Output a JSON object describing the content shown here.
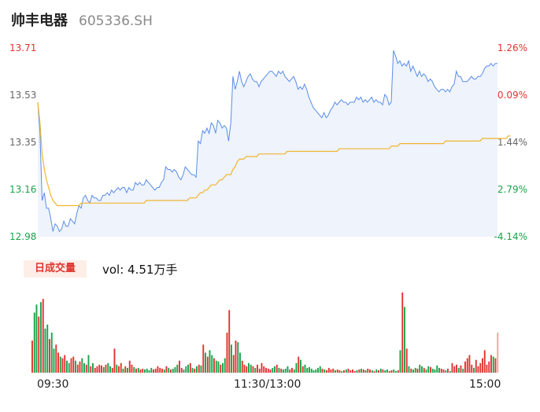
{
  "header": {
    "name": "帅丰电器",
    "code": "605336.SH"
  },
  "colors": {
    "up": "#e0342f",
    "down": "#1aa34a",
    "neutral": "#666666",
    "price_line": "#5b8ee6",
    "avg_line": "#f2b430",
    "fill": "#eef3fc"
  },
  "chart_data": [
    {
      "type": "line",
      "title": "",
      "x_ticks": [
        "09:30",
        "11:30/13:00",
        "15:00"
      ],
      "y_left_ticks": [
        "13.71",
        "13.53",
        "13.35",
        "13.16",
        "12.98"
      ],
      "y_right_ticks": [
        "1.26%",
        "-0.09%",
        "-1.44%",
        "-2.79%",
        "-4.14%"
      ],
      "ylim": [
        12.98,
        13.71
      ],
      "prev_close": 13.54,
      "series": [
        {
          "role": "price",
          "values": [
            13.5,
            13.38,
            13.12,
            13.15,
            13.09,
            13.09,
            13.05,
            13.0,
            13.03,
            13.02,
            13.0,
            13.01,
            13.04,
            13.02,
            13.02,
            13.05,
            13.04,
            13.03,
            13.07,
            13.1,
            13.09,
            13.13,
            13.14,
            13.12,
            13.11,
            13.14,
            13.13,
            13.13,
            13.12,
            13.12,
            13.14,
            13.14,
            13.15,
            13.14,
            13.16,
            13.15,
            13.16,
            13.17,
            13.16,
            13.17,
            13.17,
            13.15,
            13.17,
            13.16,
            13.16,
            13.19,
            13.18,
            13.19,
            13.18,
            13.18,
            13.2,
            13.19,
            13.18,
            13.17,
            13.16,
            13.17,
            13.17,
            13.19,
            13.2,
            13.25,
            13.24,
            13.24,
            13.23,
            13.24,
            13.23,
            13.21,
            13.2,
            13.22,
            13.25,
            13.24,
            13.23,
            13.22,
            13.22,
            13.21,
            13.35,
            13.34,
            13.39,
            13.38,
            13.4,
            13.38,
            13.42,
            13.41,
            13.38,
            13.43,
            13.42,
            13.4,
            13.41,
            13.4,
            13.35,
            13.42,
            13.6,
            13.55,
            13.58,
            13.62,
            13.58,
            13.56,
            13.58,
            13.6,
            13.61,
            13.59,
            13.58,
            13.58,
            13.56,
            13.58,
            13.59,
            13.6,
            13.61,
            13.62,
            13.62,
            13.61,
            13.6,
            13.62,
            13.61,
            13.62,
            13.6,
            13.59,
            13.58,
            13.59,
            13.6,
            13.58,
            13.55,
            13.56,
            13.55,
            13.57,
            13.55,
            13.52,
            13.5,
            13.48,
            13.47,
            13.46,
            13.45,
            13.44,
            13.46,
            13.44,
            13.45,
            13.47,
            13.48,
            13.5,
            13.49,
            13.5,
            13.51,
            13.5,
            13.5,
            13.49,
            13.5,
            13.5,
            13.5,
            13.52,
            13.51,
            13.52,
            13.5,
            13.51,
            13.5,
            13.51,
            13.52,
            13.5,
            13.51,
            13.5,
            13.5,
            13.49,
            13.53,
            13.52,
            13.49,
            13.5,
            13.7,
            13.68,
            13.65,
            13.66,
            13.64,
            13.65,
            13.64,
            13.66,
            13.62,
            13.64,
            13.62,
            13.6,
            13.62,
            13.6,
            13.61,
            13.6,
            13.58,
            13.59,
            13.58,
            13.56,
            13.55,
            13.54,
            13.55,
            13.55,
            13.54,
            13.55,
            13.54,
            13.56,
            13.57,
            13.62,
            13.6,
            13.6,
            13.58,
            13.58,
            13.58,
            13.59,
            13.6,
            13.59,
            13.59,
            13.6,
            13.6,
            13.61,
            13.63,
            13.64,
            13.64,
            13.65,
            13.64,
            13.65,
            13.65
          ]
        },
        {
          "role": "average",
          "values": [
            13.5,
            13.42,
            13.3,
            13.24,
            13.2,
            13.17,
            13.14,
            13.12,
            13.11,
            13.1,
            13.1,
            13.1,
            13.1,
            13.1,
            13.1,
            13.1,
            13.1,
            13.1,
            13.1,
            13.1,
            13.11,
            13.11,
            13.11,
            13.11,
            13.11,
            13.11,
            13.11,
            13.11,
            13.11,
            13.11,
            13.11,
            13.11,
            13.11,
            13.11,
            13.11,
            13.11,
            13.11,
            13.11,
            13.11,
            13.11,
            13.11,
            13.11,
            13.11,
            13.11,
            13.11,
            13.11,
            13.11,
            13.11,
            13.11,
            13.11,
            13.12,
            13.12,
            13.12,
            13.12,
            13.12,
            13.12,
            13.12,
            13.12,
            13.12,
            13.12,
            13.12,
            13.12,
            13.12,
            13.12,
            13.12,
            13.12,
            13.12,
            13.12,
            13.12,
            13.12,
            13.13,
            13.13,
            13.13,
            13.13,
            13.14,
            13.15,
            13.15,
            13.16,
            13.16,
            13.17,
            13.18,
            13.18,
            13.18,
            13.19,
            13.2,
            13.2,
            13.21,
            13.22,
            13.22,
            13.22,
            13.24,
            13.25,
            13.27,
            13.28,
            13.28,
            13.28,
            13.29,
            13.29,
            13.29,
            13.29,
            13.29,
            13.29,
            13.3,
            13.3,
            13.3,
            13.3,
            13.3,
            13.3,
            13.3,
            13.3,
            13.3,
            13.3,
            13.3,
            13.3,
            13.3,
            13.31,
            13.31,
            13.31,
            13.31,
            13.31,
            13.31,
            13.31,
            13.31,
            13.31,
            13.31,
            13.31,
            13.31,
            13.31,
            13.31,
            13.31,
            13.31,
            13.31,
            13.31,
            13.31,
            13.31,
            13.31,
            13.31,
            13.31,
            13.31,
            13.32,
            13.32,
            13.32,
            13.32,
            13.32,
            13.32,
            13.32,
            13.32,
            13.32,
            13.32,
            13.32,
            13.32,
            13.32,
            13.32,
            13.32,
            13.32,
            13.32,
            13.32,
            13.32,
            13.32,
            13.32,
            13.32,
            13.32,
            13.32,
            13.33,
            13.33,
            13.33,
            13.33,
            13.34,
            13.34,
            13.34,
            13.34,
            13.34,
            13.34,
            13.34,
            13.34,
            13.34,
            13.34,
            13.34,
            13.34,
            13.34,
            13.34,
            13.34,
            13.34,
            13.34,
            13.34,
            13.34,
            13.34,
            13.34,
            13.35,
            13.35,
            13.35,
            13.35,
            13.35,
            13.35,
            13.35,
            13.35,
            13.35,
            13.35,
            13.35,
            13.35,
            13.35,
            13.35,
            13.35,
            13.35,
            13.35,
            13.36,
            13.36,
            13.36,
            13.36,
            13.36,
            13.36,
            13.36,
            13.36,
            13.36,
            13.36,
            13.36,
            13.36,
            13.37,
            13.37
          ]
        }
      ]
    },
    {
      "type": "bar",
      "title": "日成交量",
      "label": "vol: 4.51万手",
      "values": [
        40,
        75,
        85,
        70,
        88,
        92,
        55,
        60,
        42,
        50,
        30,
        35,
        25,
        20,
        18,
        22,
        15,
        12,
        18,
        20,
        15,
        10,
        14,
        18,
        12,
        10,
        22,
        8,
        12,
        6,
        8,
        10,
        9,
        7,
        10,
        12,
        8,
        6,
        30,
        10,
        8,
        12,
        5,
        8,
        6,
        15,
        10,
        7,
        5,
        6,
        4,
        5,
        4,
        5,
        3,
        6,
        4,
        5,
        8,
        6,
        5,
        4,
        8,
        6,
        4,
        5,
        7,
        10,
        15,
        6,
        4,
        8,
        10,
        12,
        6,
        5,
        8,
        10,
        9,
        35,
        25,
        20,
        28,
        22,
        18,
        15,
        14,
        10,
        12,
        18,
        50,
        78,
        35,
        22,
        40,
        38,
        25,
        15,
        10,
        8,
        12,
        10,
        8,
        6,
        10,
        5,
        12,
        8,
        6,
        5,
        4,
        6,
        8,
        10,
        6,
        5,
        4,
        5,
        8,
        4,
        6,
        4,
        12,
        20,
        16,
        8,
        10,
        6,
        7,
        5,
        3,
        4,
        6,
        8,
        5,
        4,
        3,
        6,
        4,
        5,
        3,
        4,
        3,
        2,
        3,
        4,
        5,
        3,
        4,
        2,
        3,
        4,
        5,
        4,
        3,
        5,
        4,
        3,
        2,
        4,
        3,
        5,
        4,
        3,
        4,
        2,
        3,
        4,
        2,
        3,
        28,
        100,
        82,
        30,
        8,
        5,
        4,
        6,
        5,
        10,
        8,
        6,
        4,
        8,
        7,
        5,
        4,
        9,
        6,
        5,
        4,
        3,
        5,
        2,
        12,
        8,
        10,
        6,
        9,
        5,
        14,
        18,
        22,
        10,
        6,
        16,
        8,
        12,
        18,
        28,
        10,
        14,
        22,
        20,
        18,
        50
      ]
    }
  ],
  "volume_panel": {
    "badge": "日成交量",
    "text": "vol: 4.51万手"
  }
}
